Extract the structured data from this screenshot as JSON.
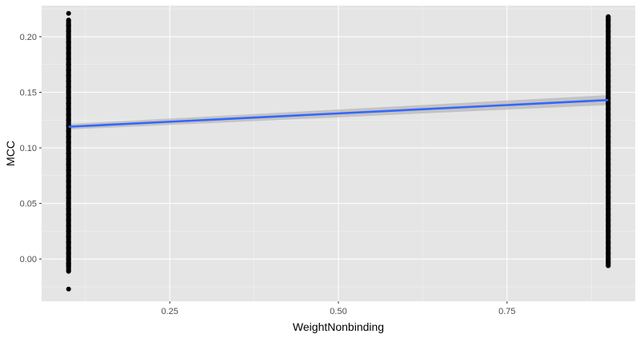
{
  "chart_data": {
    "type": "scatter",
    "title": "",
    "xlabel": "WeightNonbinding",
    "ylabel": "MCC",
    "xlim": [
      0.06,
      0.94
    ],
    "ylim": [
      -0.038,
      0.228
    ],
    "x_ticks": [
      0.25,
      0.5,
      0.75
    ],
    "x_tick_labels": [
      "0.25",
      "0.50",
      "0.75"
    ],
    "y_ticks": [
      0.0,
      0.05,
      0.1,
      0.15,
      0.2
    ],
    "y_tick_labels": [
      "0.00",
      "0.05",
      "0.10",
      "0.15",
      "0.20"
    ],
    "grid": true,
    "series": [
      {
        "name": "points",
        "type": "scatter",
        "x_levels": [
          0.1,
          0.9
        ],
        "x": [
          0.1,
          0.1,
          0.1,
          0.1,
          0.1,
          0.1,
          0.1,
          0.1,
          0.1,
          0.1,
          0.1,
          0.1,
          0.1,
          0.1,
          0.1,
          0.1,
          0.1,
          0.1,
          0.1,
          0.1,
          0.1,
          0.1,
          0.1,
          0.1,
          0.1,
          0.1,
          0.1,
          0.1,
          0.1,
          0.1,
          0.1,
          0.1,
          0.1,
          0.1,
          0.1,
          0.1,
          0.1,
          0.1,
          0.1,
          0.1,
          0.1,
          0.1,
          0.1,
          0.1,
          0.1,
          0.1,
          0.1,
          0.1,
          0.1,
          0.9,
          0.9,
          0.9,
          0.9,
          0.9,
          0.9,
          0.9,
          0.9,
          0.9,
          0.9,
          0.9,
          0.9,
          0.9,
          0.9,
          0.9,
          0.9,
          0.9,
          0.9,
          0.9,
          0.9,
          0.9,
          0.9,
          0.9,
          0.9,
          0.9,
          0.9,
          0.9,
          0.9,
          0.9,
          0.9,
          0.9,
          0.9,
          0.9,
          0.9,
          0.9,
          0.9,
          0.9,
          0.9,
          0.9,
          0.9,
          0.9,
          0.9,
          0.9,
          0.9,
          0.9,
          0.9,
          0.9
        ],
        "y": [
          -0.027,
          -0.011,
          -0.006,
          -0.004,
          0.0,
          0.005,
          0.01,
          0.015,
          0.02,
          0.025,
          0.03,
          0.035,
          0.04,
          0.045,
          0.05,
          0.055,
          0.06,
          0.065,
          0.07,
          0.075,
          0.08,
          0.085,
          0.09,
          0.095,
          0.1,
          0.105,
          0.11,
          0.115,
          0.12,
          0.125,
          0.13,
          0.135,
          0.14,
          0.145,
          0.15,
          0.155,
          0.16,
          0.165,
          0.17,
          0.175,
          0.18,
          0.185,
          0.19,
          0.195,
          0.2,
          0.205,
          0.21,
          0.215,
          0.221,
          -0.006,
          -0.003,
          0.0,
          0.005,
          0.01,
          0.015,
          0.02,
          0.025,
          0.03,
          0.035,
          0.04,
          0.045,
          0.05,
          0.055,
          0.06,
          0.065,
          0.07,
          0.075,
          0.08,
          0.085,
          0.09,
          0.095,
          0.1,
          0.105,
          0.11,
          0.115,
          0.12,
          0.125,
          0.13,
          0.135,
          0.14,
          0.145,
          0.15,
          0.155,
          0.16,
          0.165,
          0.17,
          0.175,
          0.18,
          0.185,
          0.19,
          0.195,
          0.2,
          0.205,
          0.21,
          0.215,
          0.218
        ],
        "color": "#000000"
      }
    ],
    "fit_line": {
      "name": "linear fit",
      "x": [
        0.1,
        0.9
      ],
      "y": [
        0.119,
        0.143
      ],
      "ci_lower": [
        0.1165,
        0.1385
      ],
      "ci_upper": [
        0.1215,
        0.1475
      ],
      "line_color": "#3366ff",
      "band_color": "#bdbdbd"
    },
    "colors": {
      "panel_background": "#e5e5e5",
      "grid_major": "#ffffff",
      "grid_minor": "#f2f2f2",
      "tick_label": "#4d4d4d"
    }
  }
}
